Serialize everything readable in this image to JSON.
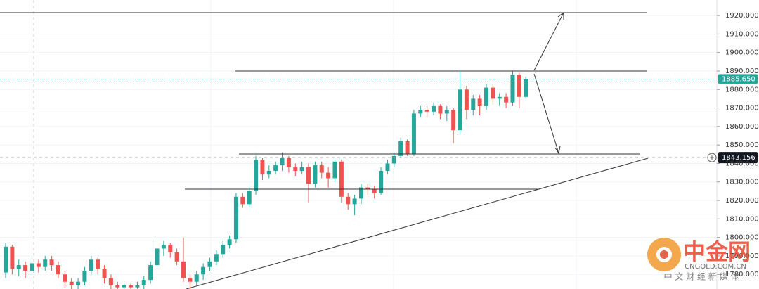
{
  "chart_data": {
    "type": "candlestick",
    "ylim": [
      1772.1,
      1928.4
    ],
    "yticks": [
      {
        "value": 1780,
        "label": "1780.000"
      },
      {
        "value": 1790,
        "label": "1790.000"
      },
      {
        "value": 1800,
        "label": "1800.000"
      },
      {
        "value": 1810,
        "label": "1810.000"
      },
      {
        "value": 1820,
        "label": "1820.000"
      },
      {
        "value": 1830,
        "label": "1830.000"
      },
      {
        "value": 1840,
        "label": "1840.000"
      },
      {
        "value": 1850,
        "label": "1850.000"
      },
      {
        "value": 1860,
        "label": "1860.000"
      },
      {
        "value": 1870,
        "label": "1870.000"
      },
      {
        "value": 1880,
        "label": "1880.000"
      },
      {
        "value": 1890,
        "label": "1890.000"
      },
      {
        "value": 1900,
        "label": "1900.000"
      },
      {
        "value": 1910,
        "label": "1910.000"
      },
      {
        "value": 1920,
        "label": "1920.000"
      }
    ],
    "grid": true,
    "up_color": "#26a69a",
    "down_color": "#ef5350",
    "open": [
      1781,
      1795,
      1783,
      1785,
      1782,
      1786,
      1784,
      1788,
      1785,
      1780,
      1776,
      1774,
      1776,
      1782,
      1788,
      1783,
      1778,
      1774,
      1773,
      1774,
      1773,
      1774,
      1777,
      1785,
      1794,
      1796,
      1792,
      1787,
      1778,
      1776,
      1780,
      1784,
      1787,
      1791,
      1796,
      1799,
      1822,
      1818,
      1825,
      1842,
      1834,
      1836,
      1839,
      1843,
      1838,
      1836,
      1838,
      1829,
      1839,
      1835,
      1832,
      1841,
      1822,
      1818,
      1821,
      1827,
      1826,
      1824,
      1836,
      1840,
      1844,
      1852,
      1845,
      1867,
      1869,
      1868,
      1871,
      1867,
      1869,
      1858,
      1880,
      1869,
      1875,
      1871,
      1881,
      1875,
      1876,
      1873,
      1888,
      1876
    ],
    "high": [
      1797,
      1796,
      1788,
      1787,
      1789,
      1788,
      1790,
      1790,
      1787,
      1782,
      1778,
      1778,
      1784,
      1790,
      1789,
      1785,
      1780,
      1776,
      1775,
      1775,
      1776,
      1779,
      1787,
      1800,
      1798,
      1797,
      1794,
      1800,
      1780,
      1782,
      1786,
      1789,
      1793,
      1798,
      1801,
      1824,
      1824,
      1827,
      1844,
      1843,
      1839,
      1841,
      1846,
      1844,
      1840,
      1841,
      1840,
      1841,
      1841,
      1838,
      1842,
      1842,
      1824,
      1823,
      1829,
      1829,
      1828,
      1838,
      1842,
      1846,
      1854,
      1853,
      1869,
      1871,
      1871,
      1873,
      1872,
      1871,
      1870,
      1890,
      1882,
      1877,
      1877,
      1883,
      1883,
      1878,
      1878,
      1890,
      1889,
      1887
    ],
    "low": [
      1778,
      1780,
      1779,
      1778,
      1779,
      1781,
      1782,
      1782,
      1778,
      1773,
      1772,
      1772,
      1774,
      1780,
      1780,
      1775,
      1772,
      1772,
      1772,
      1772,
      1772,
      1772,
      1775,
      1783,
      1790,
      1789,
      1785,
      1776,
      1772,
      1774,
      1777,
      1782,
      1785,
      1789,
      1794,
      1797,
      1816,
      1816,
      1823,
      1831,
      1832,
      1834,
      1836,
      1835,
      1833,
      1834,
      1819,
      1827,
      1832,
      1827,
      1830,
      1819,
      1815,
      1812,
      1818,
      1823,
      1821,
      1823,
      1834,
      1838,
      1843,
      1844,
      1844,
      1865,
      1865,
      1866,
      1864,
      1863,
      1851,
      1856,
      1864,
      1866,
      1866,
      1869,
      1872,
      1871,
      1870,
      1871,
      1870,
      1875
    ],
    "close": [
      1795,
      1783,
      1785,
      1782,
      1786,
      1784,
      1788,
      1785,
      1780,
      1776,
      1774,
      1776,
      1782,
      1788,
      1783,
      1778,
      1774,
      1773,
      1774,
      1773,
      1774,
      1777,
      1785,
      1794,
      1796,
      1792,
      1787,
      1778,
      1776,
      1780,
      1784,
      1787,
      1791,
      1796,
      1799,
      1822,
      1818,
      1825,
      1842,
      1834,
      1836,
      1839,
      1843,
      1838,
      1836,
      1838,
      1829,
      1839,
      1835,
      1832,
      1841,
      1822,
      1818,
      1821,
      1827,
      1826,
      1824,
      1836,
      1840,
      1844,
      1852,
      1845,
      1867,
      1869,
      1868,
      1871,
      1867,
      1869,
      1858,
      1880,
      1869,
      1875,
      1871,
      1881,
      1875,
      1876,
      1873,
      1888,
      1876,
      1885.65
    ],
    "last_price": {
      "value": 1885.65,
      "label": "1885.650",
      "color": "#26a69a"
    },
    "crosshair": {
      "value": 1843.156,
      "label": "1843.156"
    }
  },
  "watermark": {
    "name": "中金网",
    "site": "CNGOLD.COM.CN",
    "slogan": "中 文 财 经 新 媒 体"
  }
}
